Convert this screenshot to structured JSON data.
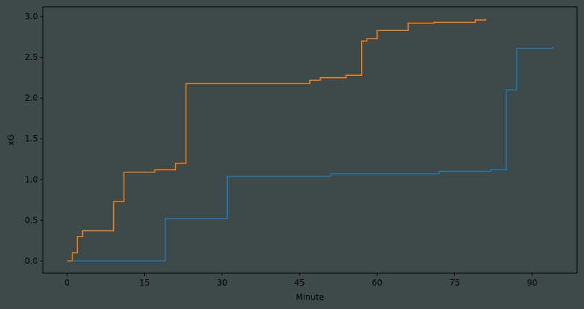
{
  "chart_data": {
    "type": "line",
    "step": true,
    "xlabel": "Minute",
    "ylabel": "xG",
    "xlim": [
      -4.7,
      98.7
    ],
    "ylim": [
      -0.15,
      3.12
    ],
    "xticks": [
      0,
      15,
      30,
      45,
      60,
      75,
      90
    ],
    "yticks": [
      0.0,
      0.5,
      1.0,
      1.5,
      2.0,
      2.5,
      3.0
    ],
    "xtick_labels": [
      "0",
      "15",
      "30",
      "45",
      "60",
      "75",
      "90"
    ],
    "ytick_labels": [
      "0.0",
      "0.5",
      "1.0",
      "1.5",
      "2.0",
      "2.5",
      "3.0"
    ],
    "grid": false,
    "legend": false,
    "background_color": "#3e4949",
    "series": [
      {
        "color": "#ff7f0e",
        "x": [
          0,
          1,
          2,
          3,
          9,
          11,
          17,
          21,
          23,
          47,
          49,
          54,
          57,
          58,
          60,
          66,
          71,
          79,
          81
        ],
        "y": [
          0.0,
          0.1,
          0.3,
          0.37,
          0.73,
          1.09,
          1.12,
          1.2,
          2.18,
          2.22,
          2.25,
          2.28,
          2.7,
          2.73,
          2.83,
          2.92,
          2.93,
          2.96,
          2.97
        ]
      },
      {
        "color": "#1f77b4",
        "x": [
          1,
          19,
          31,
          51,
          72,
          82,
          85,
          87,
          94
        ],
        "y": [
          0.0,
          0.52,
          1.04,
          1.07,
          1.1,
          1.12,
          2.1,
          2.61,
          2.63
        ]
      }
    ]
  }
}
